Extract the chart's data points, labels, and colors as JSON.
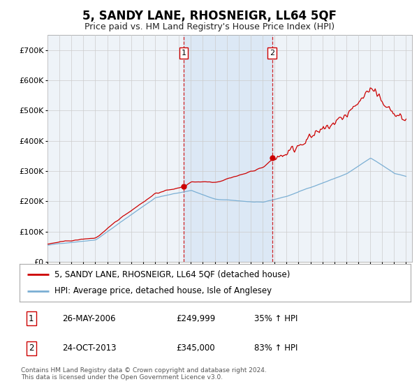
{
  "title": "5, SANDY LANE, RHOSNEIGR, LL64 5QF",
  "subtitle": "Price paid vs. HM Land Registry's House Price Index (HPI)",
  "red_label": "5, SANDY LANE, RHOSNEIGR, LL64 5QF (detached house)",
  "blue_label": "HPI: Average price, detached house, Isle of Anglesey",
  "footnote": "Contains HM Land Registry data © Crown copyright and database right 2024.\nThis data is licensed under the Open Government Licence v3.0.",
  "transaction1": {
    "num": "1",
    "date": "26-MAY-2006",
    "price": "£249,999",
    "change": "35% ↑ HPI"
  },
  "transaction2": {
    "num": "2",
    "date": "24-OCT-2013",
    "price": "£345,000",
    "change": "83% ↑ HPI"
  },
  "ylim": [
    0,
    750000
  ],
  "yticks": [
    0,
    100000,
    200000,
    300000,
    400000,
    500000,
    600000,
    700000
  ],
  "ytick_labels": [
    "£0",
    "£100K",
    "£200K",
    "£300K",
    "£400K",
    "£500K",
    "£600K",
    "£700K"
  ],
  "background_color": "#ffffff",
  "grid_color": "#cccccc",
  "plot_bg_color": "#eef3f8",
  "shaded_color": "#dce8f5",
  "vline1_x": 2006.4,
  "vline2_x": 2013.8,
  "marker1_x": 2006.4,
  "marker1_y": 249999,
  "marker2_x": 2013.8,
  "marker2_y": 345000,
  "red_color": "#cc0000",
  "blue_color": "#7bafd4",
  "xlim_left": 1995.0,
  "xlim_right": 2025.5
}
